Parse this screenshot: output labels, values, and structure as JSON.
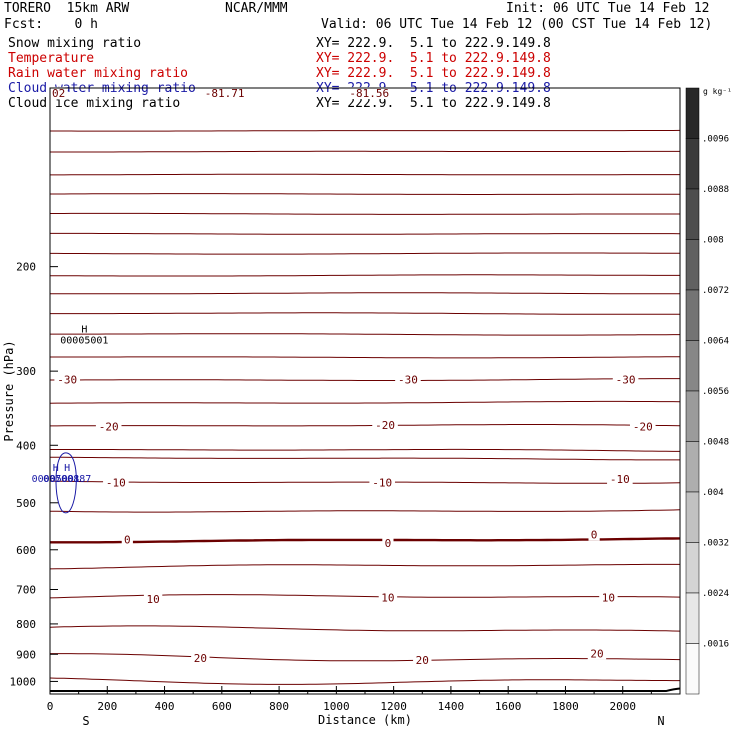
{
  "header": {
    "model": "TORERO  15km ARW",
    "org": "NCAR/MMM",
    "init": "Init: 06 UTC Tue 14 Feb 12",
    "fcst": "Fcst:    0 h",
    "valid": "Valid: 06 UTC Tue 14 Feb 12 (00 CST Tue 14 Feb 12)"
  },
  "fields": [
    {
      "name": "Snow mixing ratio",
      "xy": "XY= 222.9.  5.1 to 222.9.149.8",
      "color": "#000000"
    },
    {
      "name": "Temperature",
      "xy": "XY= 222.9.  5.1 to 222.9.149.8",
      "color": "#cc0000"
    },
    {
      "name": "Rain water mixing ratio",
      "xy": "XY= 222.9.  5.1 to 222.9.149.8",
      "color": "#cc0000"
    },
    {
      "name": "Cloud water mixing ratio",
      "xy": "XY= 222.9.  5.1 to 222.9.149.8",
      "color": "#1a1aa6"
    },
    {
      "name": "Cloud ice mixing ratio",
      "xy": "XY= 222.9.  5.1 to 222.9.149.8",
      "color": "#000000"
    }
  ],
  "chart_data": {
    "type": "contour",
    "xlabel": "Distance (km)",
    "ylabel": "Pressure (hPa)",
    "x_ticks": [
      "0",
      "200",
      "400",
      "600",
      "800",
      "1000",
      "1200",
      "1400",
      "1600",
      "1800",
      "2000"
    ],
    "y_ticks": [
      "200",
      "300",
      "400",
      "500",
      "600",
      "700",
      "800",
      "900",
      "1000"
    ],
    "xlim": [
      0,
      2200
    ],
    "ylim": [
      100,
      1050
    ],
    "y_scale": "log",
    "x_end_labels": {
      "left": "S",
      "right": "N"
    },
    "colorbar": {
      "unit": "g kg⁻¹",
      "labels": [
        ".0096",
        ".0088",
        ".008",
        ".0072",
        ".0064",
        ".0056",
        ".0048",
        ".004",
        ".0032",
        ".0024",
        ".0016"
      ]
    },
    "contour_labels": [
      {
        "text": "-81.71",
        "x": 610,
        "p": 102
      },
      {
        "text": "-81.56",
        "x": 1115,
        "p": 102
      },
      {
        "text": "02",
        "x": 30,
        "p": 102
      },
      {
        "text": "-30",
        "x": 60,
        "p": 310
      },
      {
        "text": "-30",
        "x": 1250,
        "p": 310
      },
      {
        "text": "-30",
        "x": 2010,
        "p": 310
      },
      {
        "text": "-20",
        "x": 205,
        "p": 372
      },
      {
        "text": "-20",
        "x": 1170,
        "p": 370
      },
      {
        "text": "-20",
        "x": 2070,
        "p": 372
      },
      {
        "text": "-10",
        "x": 230,
        "p": 462
      },
      {
        "text": "-10",
        "x": 1160,
        "p": 462
      },
      {
        "text": "-10",
        "x": 1990,
        "p": 456
      },
      {
        "text": "0",
        "x": 270,
        "p": 576
      },
      {
        "text": "0",
        "x": 1180,
        "p": 584
      },
      {
        "text": "0",
        "x": 1900,
        "p": 566
      },
      {
        "text": "10",
        "x": 360,
        "p": 726
      },
      {
        "text": "10",
        "x": 1180,
        "p": 722
      },
      {
        "text": "10",
        "x": 1950,
        "p": 722
      },
      {
        "text": "20",
        "x": 525,
        "p": 913
      },
      {
        "text": "20",
        "x": 1300,
        "p": 920
      },
      {
        "text": "20",
        "x": 1910,
        "p": 897
      }
    ],
    "max_markers": [
      {
        "symbol": "H",
        "value": "00005001",
        "x": 120,
        "p": 258
      },
      {
        "symbol": "H",
        "value": "00005001",
        "x": 20,
        "p": 442
      },
      {
        "symbol": "H",
        "value": "00700887",
        "x": 60,
        "p": 442
      }
    ]
  }
}
